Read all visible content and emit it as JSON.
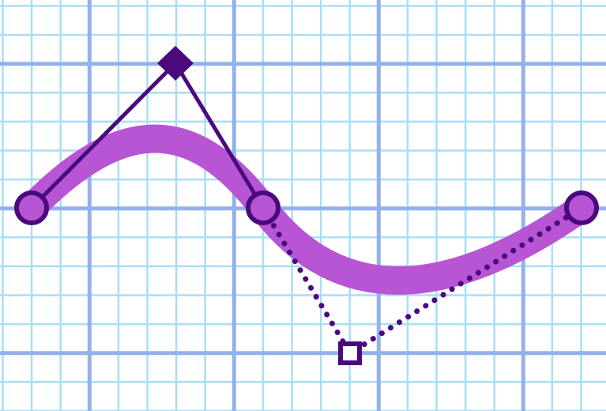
{
  "colors": {
    "background": "#ffffff",
    "grid_minor": "#a8def6",
    "grid_major": "#93b1ea",
    "curve": "#b755d4",
    "outline": "#4a0a7e",
    "anchor_fill": "#b755d4",
    "handle_open_fill": "#ffffff"
  },
  "curve_editor": {
    "segments": [
      {
        "name": "segment-1",
        "handle_style": "solid",
        "handle_marker": "diamond-filled"
      },
      {
        "name": "segment-2",
        "handle_style": "dotted",
        "handle_marker": "square-open"
      }
    ],
    "anchors": [
      "anchor-start",
      "anchor-mid",
      "anchor-end"
    ]
  }
}
